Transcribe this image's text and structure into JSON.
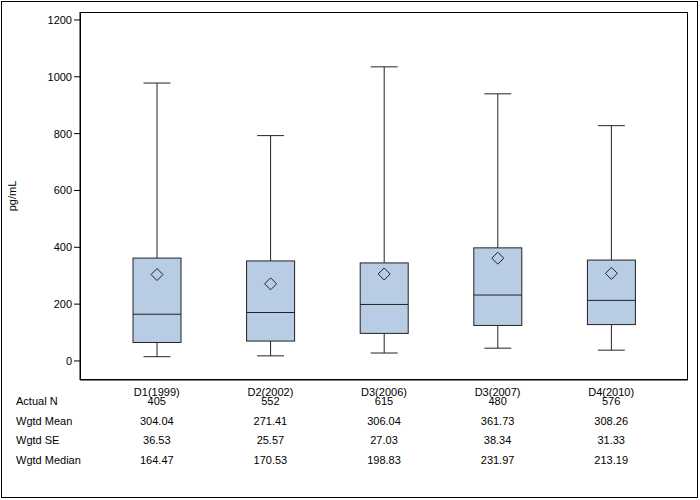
{
  "chart_data": {
    "type": "box",
    "y_label": "pg/mL",
    "categories": [
      "D1(1999)",
      "D2(2002)",
      "D3(2006)",
      "D3(2007)",
      "D4(2010)"
    ],
    "ylim": [
      -67,
      1228
    ],
    "yticks": [
      0,
      200,
      400,
      600,
      800,
      1000,
      1200
    ],
    "color": "#b8cce4",
    "boxes": {
      "whisker_low": [
        15,
        18,
        28,
        45,
        38
      ],
      "q1": [
        65,
        70,
        97,
        125,
        128
      ],
      "q3": [
        362,
        352,
        345,
        398,
        355
      ],
      "whisker_high": [
        978,
        793,
        1035,
        940,
        828
      ]
    },
    "n": [
      405,
      552,
      615,
      480,
      576
    ],
    "mean": [
      304.04,
      271.41,
      306.04,
      361.73,
      308.26
    ],
    "se": [
      36.53,
      25.57,
      27.03,
      38.34,
      31.33
    ],
    "median": [
      164.47,
      170.53,
      198.83,
      231.97,
      213.19
    ],
    "table_labels": {
      "n": "Actual N",
      "mean": "Wgtd Mean",
      "se": "Wgtd SE",
      "median": "Wgtd Median"
    }
  }
}
